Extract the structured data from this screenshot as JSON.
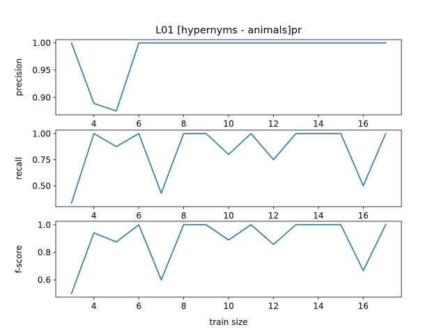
{
  "chart_data": [
    {
      "type": "line",
      "title": "L01 [hypernyms - animals]pr",
      "ylabel": "precision",
      "xlabel": "",
      "x": [
        3,
        4,
        5,
        6,
        7,
        8,
        9,
        10,
        11,
        12,
        13,
        14,
        15,
        16,
        17
      ],
      "series": [
        {
          "values": [
            1.0,
            0.889,
            0.875,
            1.0,
            1.0,
            1.0,
            1.0,
            1.0,
            1.0,
            1.0,
            1.0,
            1.0,
            1.0,
            1.0,
            1.0
          ]
        }
      ],
      "xticks": [
        "4",
        "6",
        "8",
        "10",
        "12",
        "14",
        "16"
      ],
      "yticks": [
        "0.90",
        "0.95",
        "1.00"
      ],
      "xlim": [
        2.3,
        17.7
      ],
      "ylim": [
        0.868,
        1.006
      ],
      "grid": false,
      "color": "#1f77b4"
    },
    {
      "type": "line",
      "title": "",
      "ylabel": "recall",
      "xlabel": "",
      "x": [
        3,
        4,
        5,
        6,
        7,
        8,
        9,
        10,
        11,
        12,
        13,
        14,
        15,
        16,
        17
      ],
      "series": [
        {
          "values": [
            0.333,
            1.0,
            0.875,
            1.0,
            0.429,
            1.0,
            1.0,
            0.8,
            1.0,
            0.75,
            1.0,
            1.0,
            1.0,
            0.5,
            1.0
          ]
        }
      ],
      "xticks": [
        "4",
        "6",
        "8",
        "10",
        "12",
        "14",
        "16"
      ],
      "yticks": [
        "0.50",
        "0.75",
        "1.00"
      ],
      "xlim": [
        2.3,
        17.7
      ],
      "ylim": [
        0.3,
        1.033
      ],
      "grid": false,
      "color": "#1f77b4"
    },
    {
      "type": "line",
      "title": "",
      "ylabel": "f-score",
      "xlabel": "train size",
      "x": [
        3,
        4,
        5,
        6,
        7,
        8,
        9,
        10,
        11,
        12,
        13,
        14,
        15,
        16,
        17
      ],
      "series": [
        {
          "values": [
            0.5,
            0.941,
            0.875,
            1.0,
            0.6,
            1.0,
            1.0,
            0.889,
            1.0,
            0.857,
            1.0,
            1.0,
            1.0,
            0.667,
            1.0
          ]
        }
      ],
      "xticks": [
        "4",
        "6",
        "8",
        "10",
        "12",
        "14",
        "16"
      ],
      "yticks": [
        "0.6",
        "0.8",
        "1.0"
      ],
      "xlim": [
        2.3,
        17.7
      ],
      "ylim": [
        0.475,
        1.025
      ],
      "grid": false,
      "color": "#1f77b4"
    }
  ]
}
